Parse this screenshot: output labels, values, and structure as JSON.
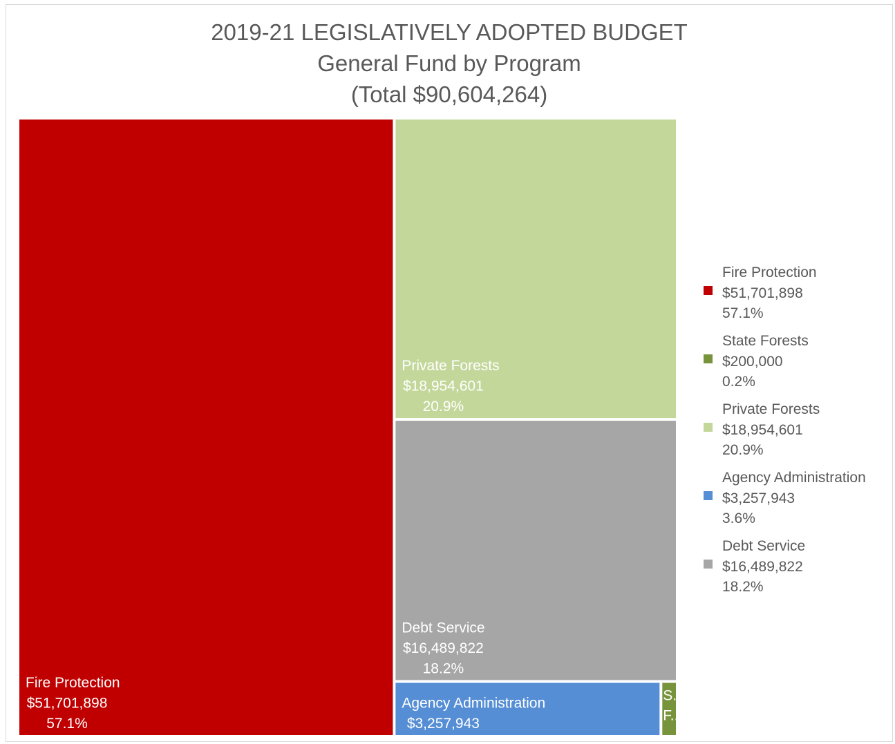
{
  "title": {
    "line1": "2019-21 LEGISLATIVELY ADOPTED BUDGET",
    "line2": "General Fund by Program",
    "line3": "(Total $90,604,264)"
  },
  "chart_data": {
    "type": "treemap",
    "title": "2019-21 LEGISLATIVELY ADOPTED BUDGET General Fund by Program (Total $90,604,264)",
    "total": 90604264,
    "items": [
      {
        "name": "Fire Protection",
        "value": 51701898,
        "value_label": "$51,701,898",
        "percent_label": "57.1%",
        "color": "#c00000"
      },
      {
        "name": "Private Forests",
        "value": 18954601,
        "value_label": "$18,954,601",
        "percent_label": "20.9%",
        "color": "#c4d79b"
      },
      {
        "name": "Debt Service",
        "value": 16489822,
        "value_label": "$16,489,822",
        "percent_label": "18.2%",
        "color": "#a6a6a6"
      },
      {
        "name": "Agency Administration",
        "value": 3257943,
        "value_label": "$3,257,943",
        "percent_label": "3.6%",
        "color": "#558ed5"
      },
      {
        "name": "State Forests",
        "value": 200000,
        "value_label": "$200,000",
        "percent_label": "0.2%",
        "color": "#77933c",
        "truncated_labels": [
          "S..",
          "F.."
        ]
      }
    ],
    "legend": {
      "placement": "right",
      "order": [
        "Fire Protection",
        "State Forests",
        "Private Forests",
        "Agency Administration",
        "Debt Service"
      ]
    }
  }
}
